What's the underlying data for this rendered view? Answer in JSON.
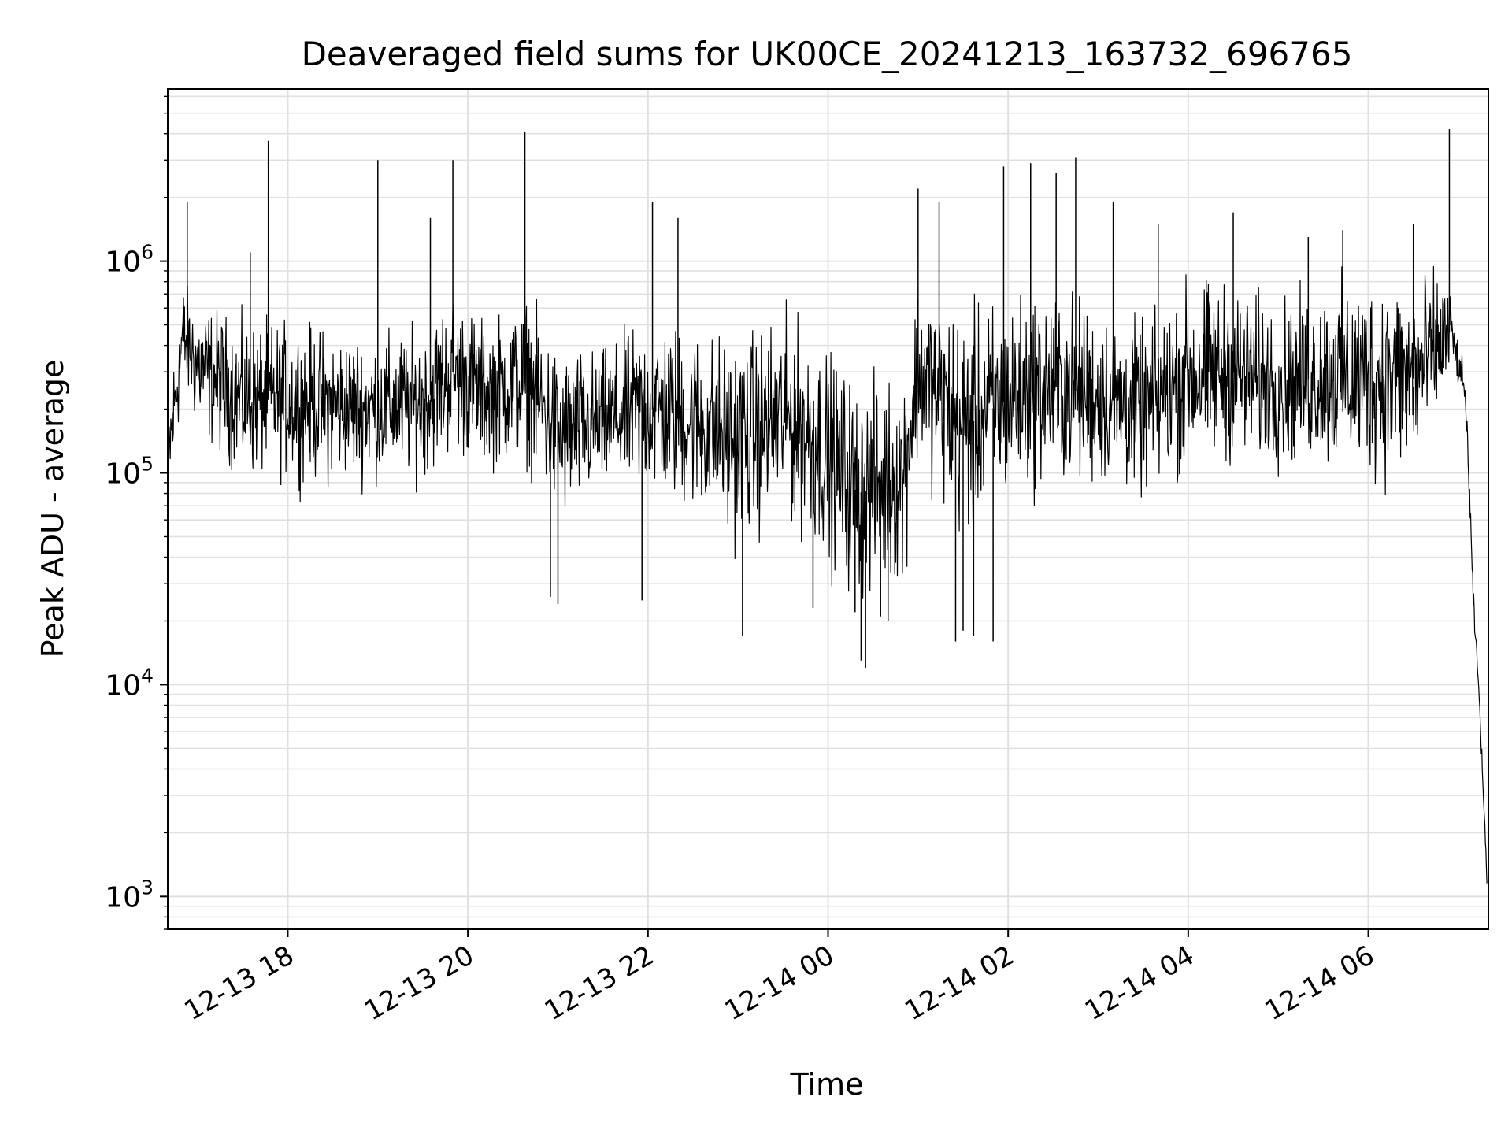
{
  "chart_data": {
    "type": "line",
    "title": "Deaveraged field sums for UK00CE_20241213_163732_696765",
    "xlabel": "Time",
    "ylabel": "Peak ADU - average",
    "yscale": "log",
    "ylim": [
      700,
      6500000
    ],
    "xlim": [
      "2024-12-13 16:40",
      "2024-12-14 07:20"
    ],
    "x_ticks": [
      {
        "value": "2024-12-13 18:00",
        "label": "12-13 18"
      },
      {
        "value": "2024-12-13 20:00",
        "label": "12-13 20"
      },
      {
        "value": "2024-12-13 22:00",
        "label": "12-13 22"
      },
      {
        "value": "2024-12-14 00:00",
        "label": "12-14 00"
      },
      {
        "value": "2024-12-14 02:00",
        "label": "12-14 02"
      },
      {
        "value": "2024-12-14 04:00",
        "label": "12-14 04"
      },
      {
        "value": "2024-12-14 06:00",
        "label": "12-14 06"
      }
    ],
    "y_ticks": [
      {
        "value": 1000,
        "base": "10",
        "exp": "3"
      },
      {
        "value": 10000,
        "base": "10",
        "exp": "4"
      },
      {
        "value": 100000,
        "base": "10",
        "exp": "5"
      },
      {
        "value": 1000000,
        "base": "10",
        "exp": "6"
      }
    ],
    "grid": true,
    "line_color": "#000000",
    "grid_color": "#e0e0e0",
    "series": [
      {
        "band": [
          {
            "t": "2024-12-13 16:40",
            "lo": 40000,
            "hi": 300000
          },
          {
            "t": "2024-12-13 16:50",
            "lo": 200000,
            "hi": 1000000
          },
          {
            "t": "2024-12-13 17:00",
            "lo": 120000,
            "hi": 850000
          },
          {
            "t": "2024-12-13 17:30",
            "lo": 70000,
            "hi": 700000
          },
          {
            "t": "2024-12-13 18:00",
            "lo": 70000,
            "hi": 700000
          },
          {
            "t": "2024-12-13 18:30",
            "lo": 65000,
            "hi": 650000
          },
          {
            "t": "2024-12-13 19:00",
            "lo": 70000,
            "hi": 600000
          },
          {
            "t": "2024-12-13 19:30",
            "lo": 70000,
            "hi": 650000
          },
          {
            "t": "2024-12-13 19:50",
            "lo": 90000,
            "hi": 1000000
          },
          {
            "t": "2024-12-13 20:10",
            "lo": 80000,
            "hi": 700000
          },
          {
            "t": "2024-12-13 20:40",
            "lo": 80000,
            "hi": 900000
          },
          {
            "t": "2024-12-13 21:00",
            "lo": 40000,
            "hi": 550000
          },
          {
            "t": "2024-12-13 21:30",
            "lo": 60000,
            "hi": 500000
          },
          {
            "t": "2024-12-13 22:00",
            "lo": 55000,
            "hi": 750000
          },
          {
            "t": "2024-12-13 22:30",
            "lo": 45000,
            "hi": 700000
          },
          {
            "t": "2024-12-13 23:00",
            "lo": 30000,
            "hi": 650000
          },
          {
            "t": "2024-12-13 23:30",
            "lo": 40000,
            "hi": 850000
          },
          {
            "t": "2024-12-13 23:50",
            "lo": 30000,
            "hi": 700000
          },
          {
            "t": "2024-12-14 00:20",
            "lo": 16000,
            "hi": 400000
          },
          {
            "t": "2024-12-14 00:50",
            "lo": 20000,
            "hi": 450000
          },
          {
            "t": "2024-12-14 01:00",
            "lo": 80000,
            "hi": 1200000
          },
          {
            "t": "2024-12-14 01:30",
            "lo": 30000,
            "hi": 900000
          },
          {
            "t": "2024-12-14 02:00",
            "lo": 50000,
            "hi": 1000000
          },
          {
            "t": "2024-12-14 02:30",
            "lo": 60000,
            "hi": 1100000
          },
          {
            "t": "2024-12-14 03:00",
            "lo": 60000,
            "hi": 900000
          },
          {
            "t": "2024-12-14 03:30",
            "lo": 55000,
            "hi": 700000
          },
          {
            "t": "2024-12-14 04:00",
            "lo": 70000,
            "hi": 1200000
          },
          {
            "t": "2024-12-14 04:30",
            "lo": 80000,
            "hi": 1100000
          },
          {
            "t": "2024-12-14 05:00",
            "lo": 75000,
            "hi": 900000
          },
          {
            "t": "2024-12-14 05:30",
            "lo": 75000,
            "hi": 1100000
          },
          {
            "t": "2024-12-14 06:00",
            "lo": 60000,
            "hi": 1300000
          },
          {
            "t": "2024-12-14 06:30",
            "lo": 60000,
            "hi": 1300000
          },
          {
            "t": "2024-12-14 06:55",
            "lo": 200000,
            "hi": 1100000
          },
          {
            "t": "2024-12-14 07:05",
            "lo": 100000,
            "hi": 500000
          },
          {
            "t": "2024-12-14 07:10",
            "lo": 15000,
            "hi": 40000
          },
          {
            "t": "2024-12-14 07:14",
            "lo": 6000,
            "hi": 12000
          },
          {
            "t": "2024-12-14 07:19",
            "lo": 1000,
            "hi": 1500
          }
        ],
        "spikes": [
          {
            "t": "2024-12-13 16:53",
            "v": 1900000
          },
          {
            "t": "2024-12-13 17:35",
            "v": 1100000
          },
          {
            "t": "2024-12-13 17:47",
            "v": 3700000
          },
          {
            "t": "2024-12-13 19:00",
            "v": 3000000
          },
          {
            "t": "2024-12-13 19:35",
            "v": 1600000
          },
          {
            "t": "2024-12-13 19:50",
            "v": 3000000
          },
          {
            "t": "2024-12-13 20:38",
            "v": 4100000
          },
          {
            "t": "2024-12-13 20:55",
            "v": 26000
          },
          {
            "t": "2024-12-13 21:00",
            "v": 24000
          },
          {
            "t": "2024-12-13 21:56",
            "v": 25000
          },
          {
            "t": "2024-12-13 22:03",
            "v": 1900000
          },
          {
            "t": "2024-12-13 22:20",
            "v": 1600000
          },
          {
            "t": "2024-12-13 23:03",
            "v": 17000
          },
          {
            "t": "2024-12-13 23:50",
            "v": 23000
          },
          {
            "t": "2024-12-14 00:18",
            "v": 22000
          },
          {
            "t": "2024-12-14 00:22",
            "v": 13000
          },
          {
            "t": "2024-12-14 00:25",
            "v": 12000
          },
          {
            "t": "2024-12-14 00:35",
            "v": 21000
          },
          {
            "t": "2024-12-14 00:40",
            "v": 20000
          },
          {
            "t": "2024-12-14 01:00",
            "v": 2200000
          },
          {
            "t": "2024-12-14 01:14",
            "v": 1900000
          },
          {
            "t": "2024-12-14 01:25",
            "v": 16000
          },
          {
            "t": "2024-12-14 01:30",
            "v": 18000
          },
          {
            "t": "2024-12-14 01:37",
            "v": 17000
          },
          {
            "t": "2024-12-14 01:50",
            "v": 16000
          },
          {
            "t": "2024-12-14 01:57",
            "v": 2800000
          },
          {
            "t": "2024-12-14 02:15",
            "v": 2900000
          },
          {
            "t": "2024-12-14 02:32",
            "v": 2600000
          },
          {
            "t": "2024-12-14 02:45",
            "v": 3100000
          },
          {
            "t": "2024-12-14 03:10",
            "v": 1900000
          },
          {
            "t": "2024-12-14 03:40",
            "v": 1500000
          },
          {
            "t": "2024-12-14 04:30",
            "v": 1700000
          },
          {
            "t": "2024-12-14 05:20",
            "v": 1300000
          },
          {
            "t": "2024-12-14 05:43",
            "v": 1400000
          },
          {
            "t": "2024-12-14 06:30",
            "v": 1500000
          },
          {
            "t": "2024-12-14 06:54",
            "v": 4200000
          }
        ]
      }
    ]
  }
}
